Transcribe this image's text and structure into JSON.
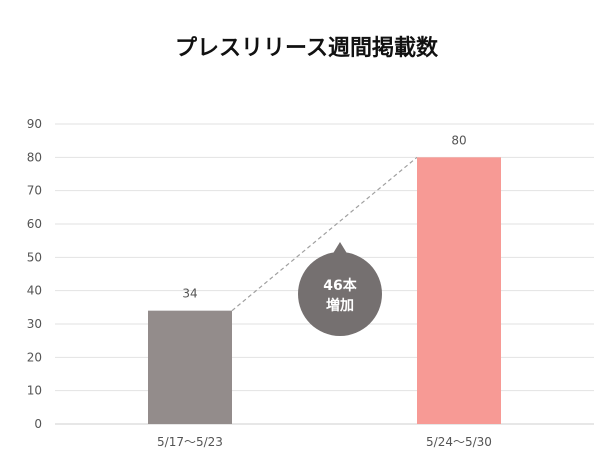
{
  "chart_data": {
    "type": "bar",
    "title": "プレスリリース週間掲載数",
    "categories": [
      "5/17〜5/23",
      "5/24〜5/30"
    ],
    "values": [
      34,
      80
    ],
    "data_labels": [
      "34",
      "80"
    ],
    "bar_colors": [
      "#938c8b",
      "#f79a95"
    ],
    "ylim": [
      0,
      90
    ],
    "yticks": [
      "0",
      "10",
      "20",
      "30",
      "40",
      "50",
      "60",
      "70",
      "80",
      "90"
    ],
    "grid": true,
    "annotation": {
      "line1": "46本",
      "line2": "増加",
      "color": "#757070",
      "connector": "dashed"
    }
  }
}
